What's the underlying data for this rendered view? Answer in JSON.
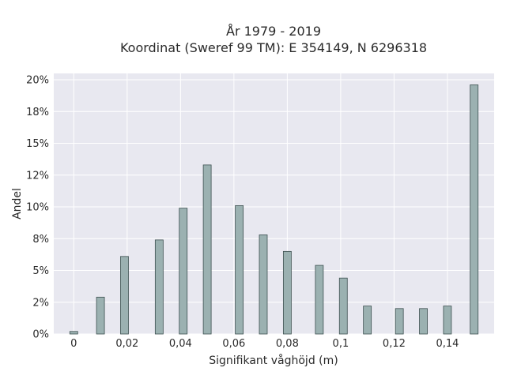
{
  "chart_data": {
    "type": "bar",
    "title_line1": "År 1979 - 2019",
    "title_line2": "Koordinat (Sweref 99 TM): E 354149, N 6296318",
    "xlabel": "Signifikant våghöjd (m)",
    "ylabel": "Andel",
    "xlim": [
      -0.0075,
      0.1575
    ],
    "ylim": [
      0,
      20.5
    ],
    "xticks": [
      {
        "value": 0,
        "label": "0"
      },
      {
        "value": 0.02,
        "label": "0,02"
      },
      {
        "value": 0.04,
        "label": "0,04"
      },
      {
        "value": 0.06,
        "label": "0,06"
      },
      {
        "value": 0.08,
        "label": "0,08"
      },
      {
        "value": 0.1,
        "label": "0,1"
      },
      {
        "value": 0.12,
        "label": "0,12"
      },
      {
        "value": 0.14,
        "label": "0,14"
      }
    ],
    "yticks": [
      {
        "value": 0,
        "label": "0%"
      },
      {
        "value": 2.5,
        "label": "2%"
      },
      {
        "value": 5,
        "label": "5%"
      },
      {
        "value": 7.5,
        "label": "8%"
      },
      {
        "value": 10,
        "label": "10%"
      },
      {
        "value": 12.5,
        "label": "12%"
      },
      {
        "value": 15,
        "label": "15%"
      },
      {
        "value": 17.5,
        "label": "18%"
      },
      {
        "value": 20,
        "label": "20%"
      }
    ],
    "x": [
      0,
      0.01,
      0.019,
      0.032,
      0.041,
      0.05,
      0.062,
      0.071,
      0.08,
      0.092,
      0.101,
      0.11,
      0.122,
      0.131,
      0.14,
      0.15
    ],
    "values": [
      0.2,
      2.9,
      6.1,
      7.4,
      9.9,
      13.3,
      10.1,
      7.8,
      6.5,
      5.4,
      4.4,
      2.2,
      2.0,
      2.0,
      2.2,
      19.6
    ],
    "bar_color": "#9bb1b1",
    "bar_edge_color": "#3d5050",
    "plot_bg": "#e8e8f0",
    "grid": true,
    "grid_color": "#ffffff"
  }
}
